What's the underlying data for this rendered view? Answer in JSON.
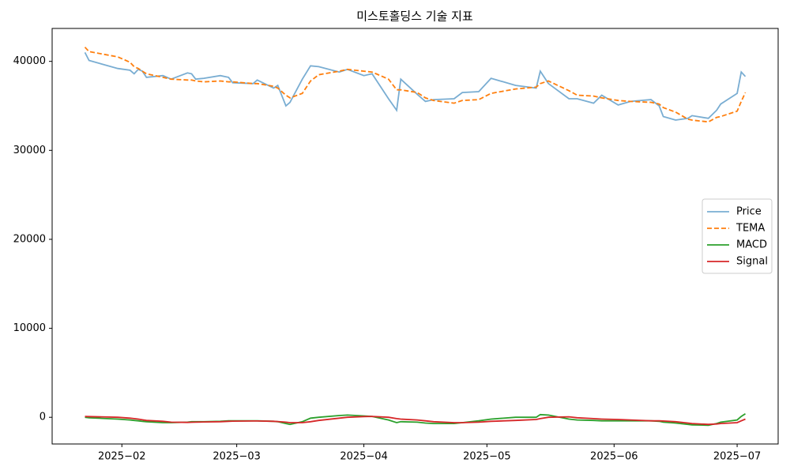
{
  "chart_data": {
    "type": "line",
    "title": "미스토홀딩스 기술 지표",
    "x": [
      "2025-01-23",
      "2025-01-24",
      "2025-01-31",
      "2025-02-03",
      "2025-02-04",
      "2025-02-05",
      "2025-02-06",
      "2025-02-07",
      "2025-02-11",
      "2025-02-13",
      "2025-02-17",
      "2025-02-18",
      "2025-02-19",
      "2025-02-21",
      "2025-02-25",
      "2025-02-27",
      "2025-02-28",
      "2025-03-05",
      "2025-03-06",
      "2025-03-10",
      "2025-03-11",
      "2025-03-13",
      "2025-03-14",
      "2025-03-17",
      "2025-03-19",
      "2025-03-21",
      "2025-03-26",
      "2025-03-28",
      "2025-04-01",
      "2025-04-03",
      "2025-04-07",
      "2025-04-09",
      "2025-04-10",
      "2025-04-14",
      "2025-04-16",
      "2025-04-18",
      "2025-04-23",
      "2025-04-25",
      "2025-04-29",
      "2025-05-02",
      "2025-05-08",
      "2025-05-13",
      "2025-05-14",
      "2025-05-16",
      "2025-05-21",
      "2025-05-23",
      "2025-05-27",
      "2025-05-29",
      "2025-06-02",
      "2025-06-05",
      "2025-06-10",
      "2025-06-12",
      "2025-06-13",
      "2025-06-16",
      "2025-06-19",
      "2025-06-20",
      "2025-06-24",
      "2025-06-26",
      "2025-06-27",
      "2025-07-01",
      "2025-07-02",
      "2025-07-03"
    ],
    "series": [
      {
        "name": "Price",
        "color": "#1f77b4",
        "alpha": 0.6,
        "linestyle": "solid",
        "values": [
          41000,
          40100,
          39200,
          39000,
          38600,
          39100,
          38900,
          38200,
          38400,
          38000,
          38700,
          38600,
          38000,
          38100,
          38400,
          38200,
          37600,
          37500,
          37900,
          37000,
          37300,
          35000,
          35400,
          38000,
          39500,
          39400,
          38800,
          39100,
          38400,
          38600,
          35800,
          34500,
          38000,
          36300,
          35500,
          35700,
          35800,
          36500,
          36600,
          38100,
          37300,
          37000,
          38900,
          37500,
          35800,
          35800,
          35300,
          36200,
          35100,
          35500,
          35700,
          35000,
          33800,
          33400,
          33600,
          33900,
          33600,
          34500,
          35200,
          36400,
          38800,
          38300
        ]
      },
      {
        "name": "TEMA",
        "color": "#ff7f0e",
        "alpha": 1,
        "linestyle": "dashed",
        "values": [
          41600,
          41100,
          40500,
          39900,
          39400,
          39200,
          38900,
          38600,
          38200,
          38000,
          37900,
          37900,
          37800,
          37700,
          37800,
          37700,
          37700,
          37500,
          37500,
          37200,
          37000,
          36200,
          35900,
          36400,
          37800,
          38500,
          38900,
          39100,
          38900,
          38800,
          38000,
          36800,
          36800,
          36500,
          35900,
          35600,
          35300,
          35600,
          35700,
          36400,
          36900,
          37100,
          37500,
          37800,
          36700,
          36200,
          36100,
          35900,
          35600,
          35500,
          35400,
          35200,
          34800,
          34300,
          33500,
          33400,
          33200,
          33700,
          33800,
          34400,
          35500,
          36500
        ]
      },
      {
        "name": "MACD",
        "color": "#2ca02c",
        "alpha": 1,
        "linestyle": "solid",
        "values": [
          0,
          -50,
          -200,
          -300,
          -350,
          -400,
          -450,
          -500,
          -600,
          -600,
          -550,
          -500,
          -500,
          -500,
          -450,
          -400,
          -400,
          -400,
          -400,
          -450,
          -500,
          -700,
          -800,
          -500,
          -100,
          0,
          200,
          250,
          150,
          100,
          -300,
          -600,
          -500,
          -550,
          -650,
          -700,
          -700,
          -600,
          -400,
          -200,
          0,
          0,
          300,
          250,
          -200,
          -300,
          -350,
          -400,
          -400,
          -400,
          -400,
          -450,
          -550,
          -650,
          -800,
          -850,
          -900,
          -700,
          -550,
          -300,
          100,
          400
        ]
      },
      {
        "name": "Signal",
        "color": "#d62728",
        "alpha": 1,
        "linestyle": "solid",
        "values": [
          100,
          80,
          0,
          -100,
          -150,
          -200,
          -280,
          -350,
          -450,
          -550,
          -580,
          -560,
          -550,
          -520,
          -500,
          -450,
          -430,
          -420,
          -420,
          -450,
          -480,
          -550,
          -600,
          -600,
          -500,
          -350,
          -100,
          0,
          80,
          100,
          0,
          -150,
          -200,
          -300,
          -400,
          -500,
          -600,
          -600,
          -550,
          -450,
          -350,
          -250,
          -150,
          0,
          50,
          -50,
          -150,
          -200,
          -250,
          -300,
          -400,
          -400,
          -420,
          -500,
          -650,
          -700,
          -800,
          -750,
          -700,
          -600,
          -400,
          -200
        ]
      }
    ],
    "xlim": [
      "2025-01-15",
      "2025-07-11"
    ],
    "xticks": [
      {
        "value": "2025-02-01",
        "label": "2025−02"
      },
      {
        "value": "2025-03-01",
        "label": "2025−03"
      },
      {
        "value": "2025-04-01",
        "label": "2025−04"
      },
      {
        "value": "2025-05-01",
        "label": "2025−05"
      },
      {
        "value": "2025-06-01",
        "label": "2025−06"
      },
      {
        "value": "2025-07-01",
        "label": "2025−07"
      }
    ],
    "ylim": [
      -3000,
      43700
    ],
    "yticks": [
      0,
      10000,
      20000,
      30000,
      40000
    ],
    "grid": false,
    "legend": "center right"
  }
}
